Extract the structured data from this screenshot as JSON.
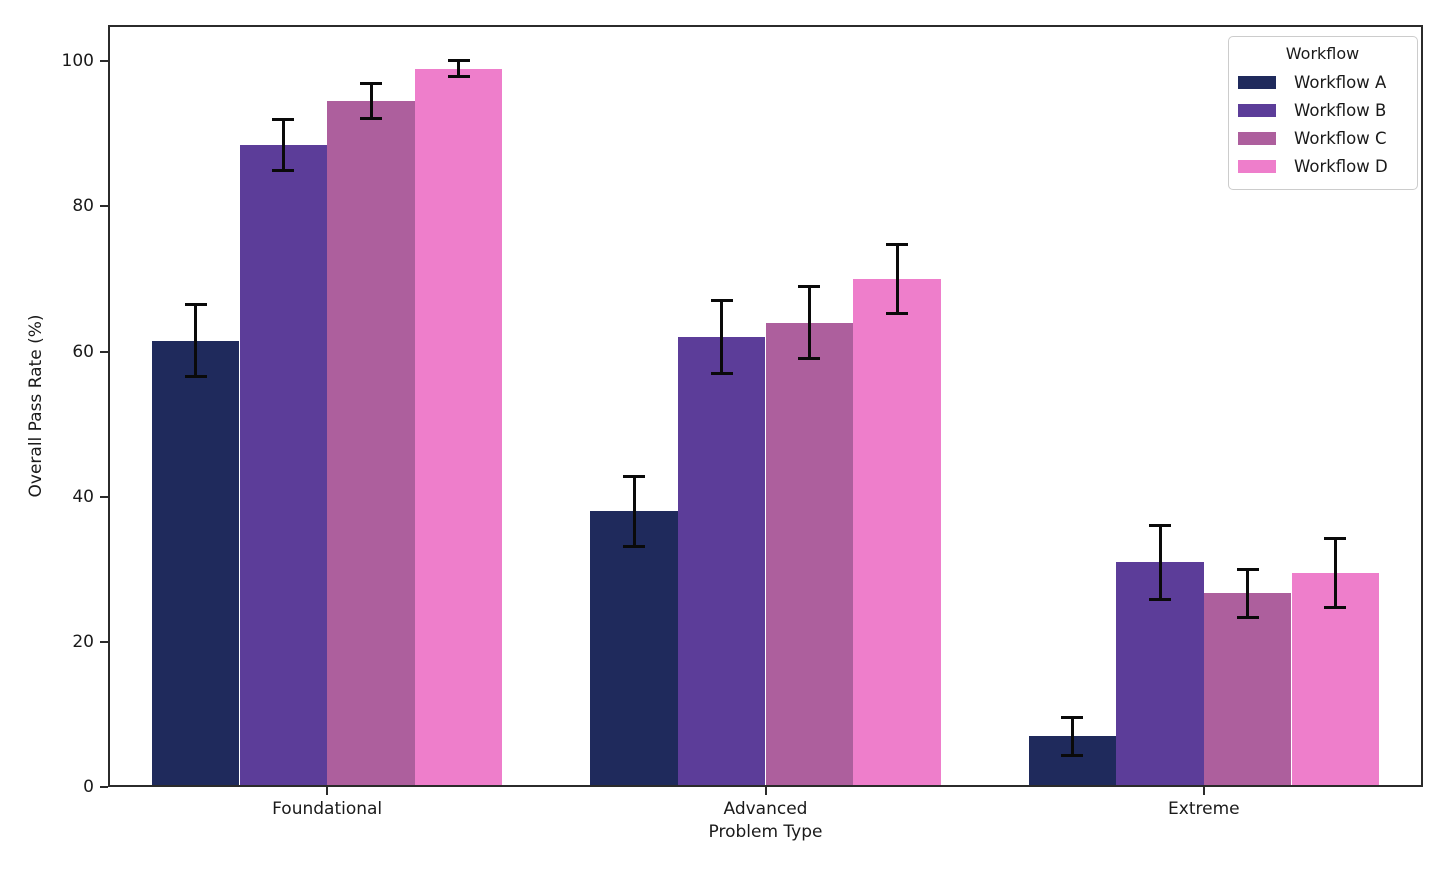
{
  "chart_data": {
    "type": "bar",
    "title": "",
    "xlabel": "Problem Type",
    "ylabel": "Overall Pass Rate (%)",
    "categories": [
      "Foundational",
      "Advanced",
      "Extreme"
    ],
    "series": [
      {
        "name": "Workflow A",
        "color": "#1f2a5c",
        "values": [
          61.5,
          38.0,
          7.0
        ],
        "errors": [
          5.0,
          4.8,
          2.6
        ]
      },
      {
        "name": "Workflow B",
        "color": "#5c3d99",
        "values": [
          88.5,
          62.0,
          31.0
        ],
        "errors": [
          3.5,
          5.0,
          5.1
        ]
      },
      {
        "name": "Workflow C",
        "color": "#ad5f9d",
        "values": [
          94.5,
          64.0,
          26.7
        ],
        "errors": [
          2.4,
          4.9,
          3.3
        ]
      },
      {
        "name": "Workflow D",
        "color": "#ee7ecb",
        "values": [
          99.0,
          70.0,
          29.5
        ],
        "errors": [
          1.1,
          4.8,
          4.7
        ]
      }
    ],
    "ylim": [
      0,
      105
    ],
    "yticks": [
      0,
      20,
      40,
      60,
      80,
      100
    ],
    "grid": false,
    "error_bars": true,
    "legend": {
      "title": "Workflow",
      "position": "upper right"
    }
  },
  "colors": {
    "spine": "#2b2b2b",
    "error_bar": "#0a0a0a",
    "legend_border": "#cccccc",
    "background": "#ffffff"
  }
}
